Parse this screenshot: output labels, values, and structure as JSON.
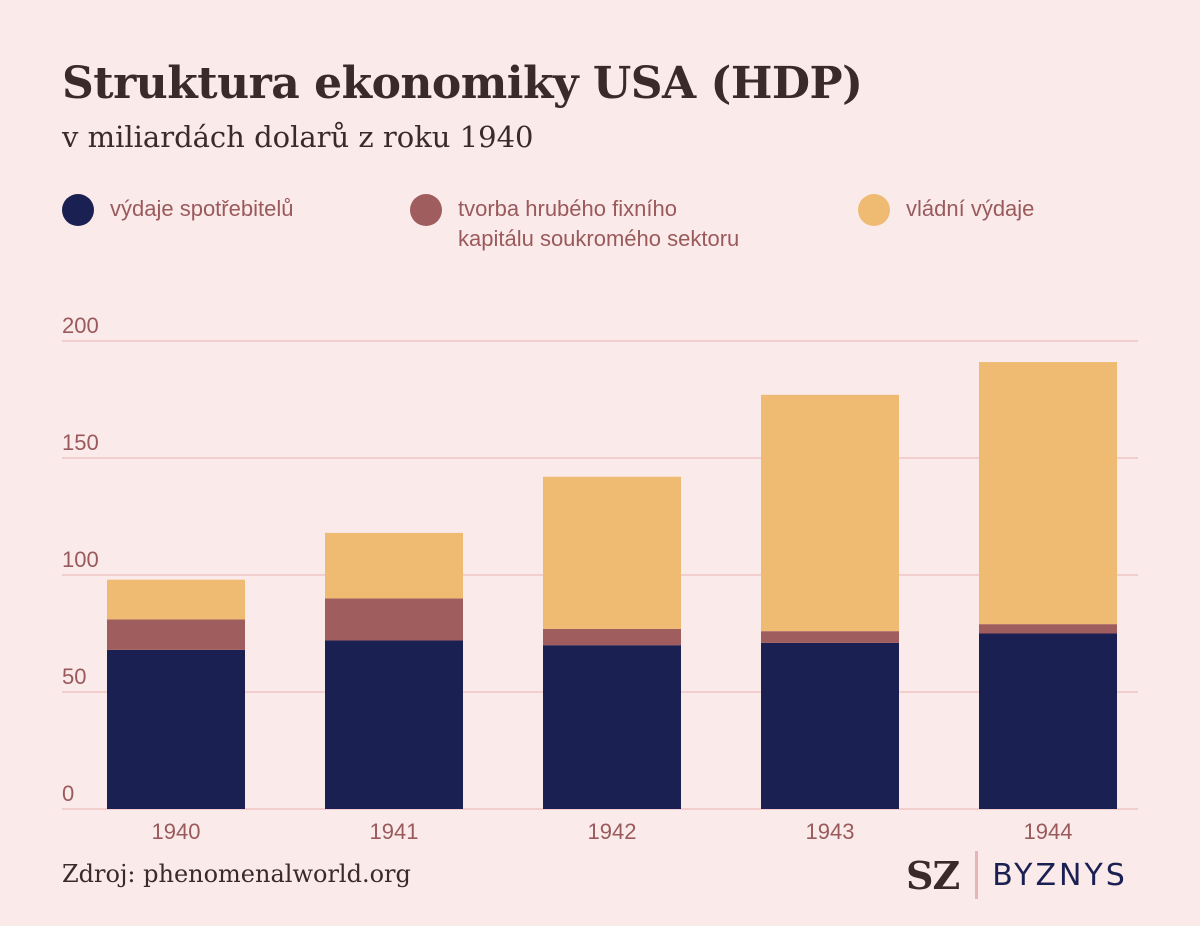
{
  "header": {
    "title": "Struktura ekonomiky USA (HDP)",
    "subtitle": "v miliardách dolarů z roku 1940"
  },
  "legend": [
    {
      "label": "výdaje spotřebitelů",
      "color": "#1b2052"
    },
    {
      "label": "tvorba hrubého fixního\nkapitálu soukromého sektoru",
      "color": "#a05d5e"
    },
    {
      "label": "vládní výdaje",
      "color": "#efbb72"
    }
  ],
  "chart_data": {
    "type": "bar",
    "stacked": true,
    "categories": [
      "1940",
      "1941",
      "1942",
      "1943",
      "1944"
    ],
    "series": [
      {
        "name": "výdaje spotřebitelů",
        "color": "#1b2052",
        "values": [
          68,
          72,
          70,
          71,
          75
        ]
      },
      {
        "name": "tvorba hrubého fixního kapitálu soukromého sektoru",
        "color": "#a05d5e",
        "values": [
          13,
          18,
          7,
          5,
          4
        ]
      },
      {
        "name": "vládní výdaje",
        "color": "#efbb72",
        "values": [
          17,
          28,
          65,
          101,
          112
        ]
      }
    ],
    "yticks": [
      0,
      50,
      100,
      150,
      200
    ],
    "ylim": [
      0,
      200
    ],
    "grid": true,
    "gridColor": "#f0c4c6",
    "legend_position": "top"
  },
  "footer": {
    "source": "Zdroj: phenomenalworld.org",
    "brand_main": "SZ",
    "brand_sub": "BYZNYS"
  }
}
